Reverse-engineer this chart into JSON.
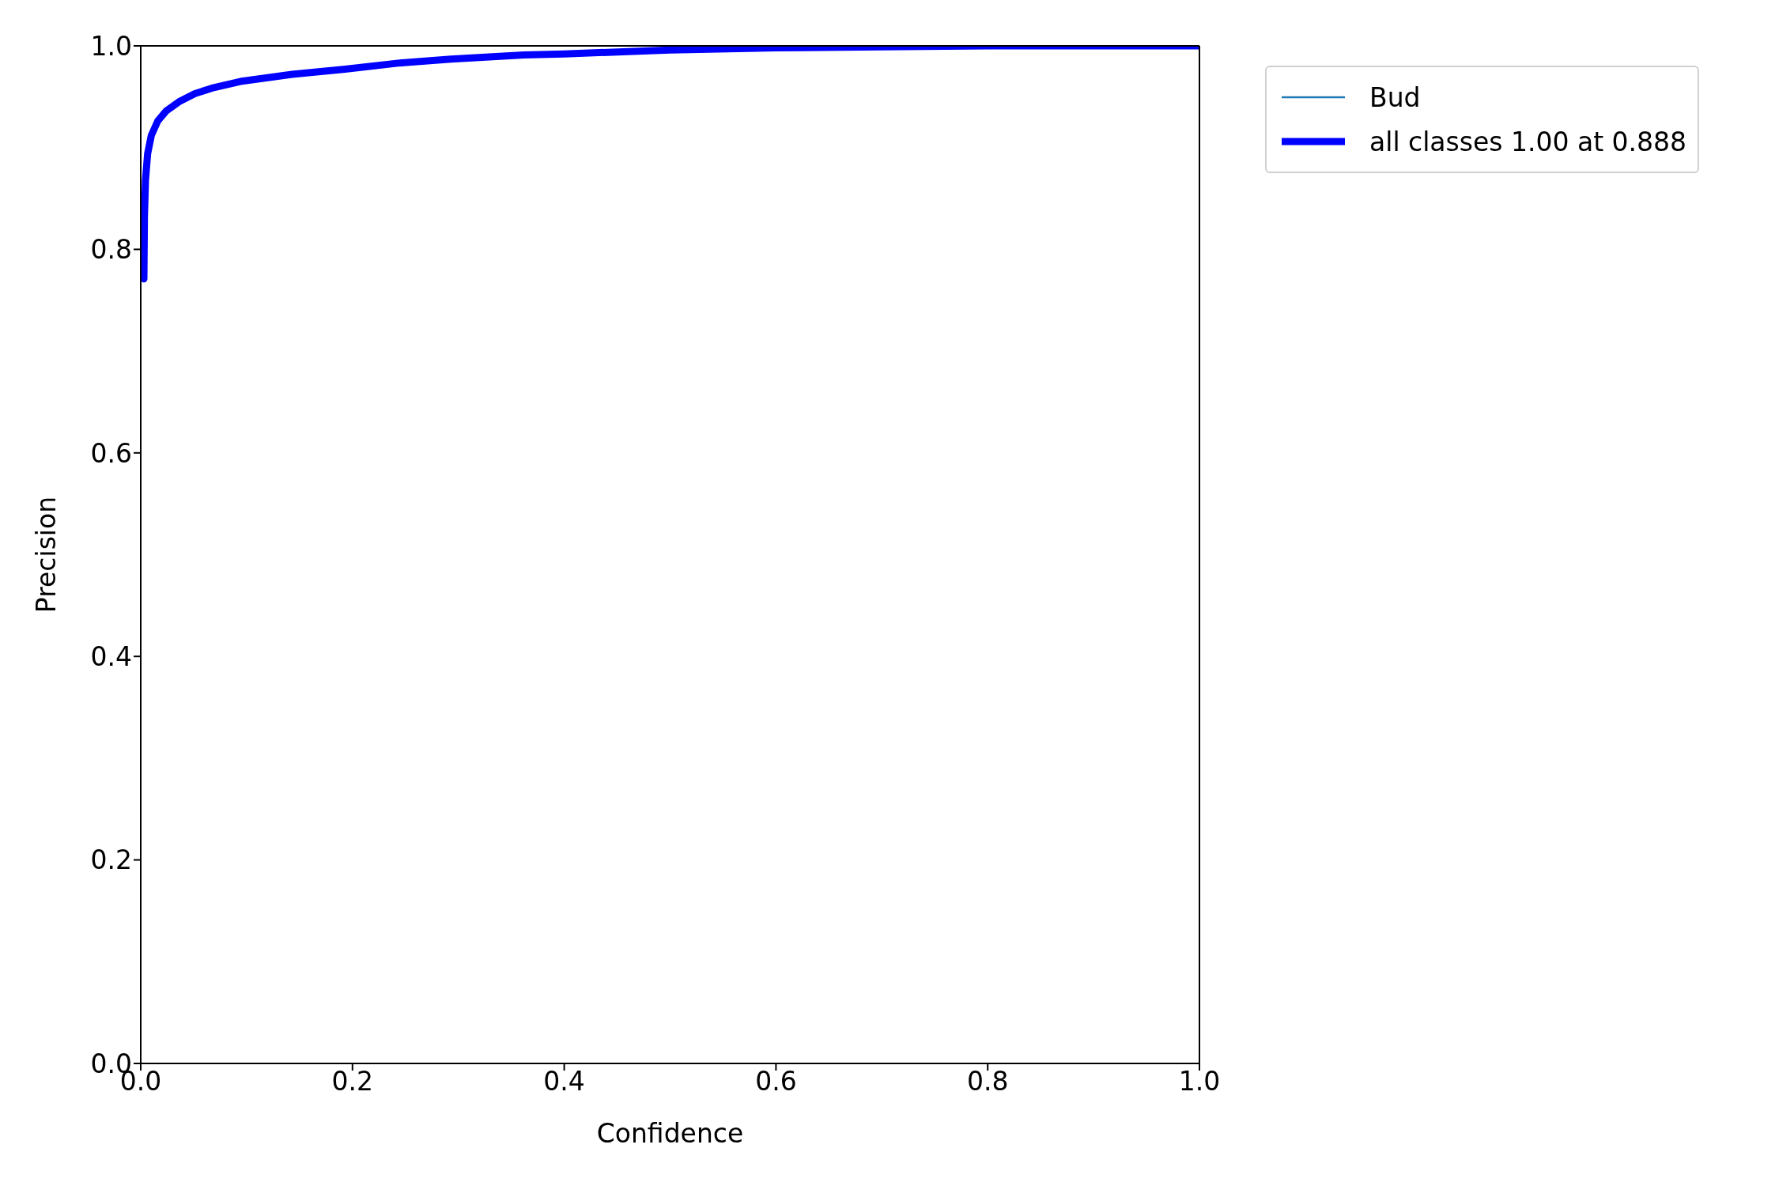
{
  "chart_data": {
    "type": "line",
    "xlabel": "Confidence",
    "ylabel": "Precision",
    "x": [
      0.003,
      0.0035,
      0.0045,
      0.0065,
      0.01,
      0.016,
      0.024,
      0.036,
      0.051,
      0.069,
      0.094,
      0.143,
      0.193,
      0.243,
      0.293,
      0.362,
      0.4,
      0.5,
      0.6,
      0.7,
      0.8,
      0.9,
      1.0
    ],
    "series": [
      {
        "name": "Bud",
        "color": "#1f77b4",
        "values": [
          null,
          null,
          null,
          null,
          null,
          null,
          null,
          null,
          null,
          null,
          null,
          null,
          null,
          null,
          null,
          null,
          null,
          null,
          null,
          null,
          null,
          null,
          null
        ]
      },
      {
        "name": "all classes 1.00 at 0.888",
        "color": "#0000ff",
        "values": [
          0.771,
          0.832,
          0.868,
          0.894,
          0.912,
          0.926,
          0.936,
          0.945,
          0.953,
          0.959,
          0.965,
          0.972,
          0.977,
          0.983,
          0.987,
          0.991,
          0.992,
          0.996,
          0.998,
          0.999,
          1.0,
          1.0,
          1.0
        ]
      }
    ],
    "xlim": [
      0.0,
      1.0
    ],
    "xticks": [
      {
        "value": 0,
        "label": "0.0"
      },
      0.2,
      0.4,
      0.6,
      0.8,
      {
        "value": 1,
        "label": "1.0"
      }
    ],
    "ylim": [
      0.0,
      1.0
    ],
    "yticks": [
      {
        "value": 0,
        "label": "0.0"
      },
      0.2,
      0.4,
      0.6,
      0.8,
      {
        "value": 1,
        "label": "1.0"
      }
    ],
    "legend": "top right",
    "grid": false,
    "marker": "none",
    "line_style": "solid"
  }
}
